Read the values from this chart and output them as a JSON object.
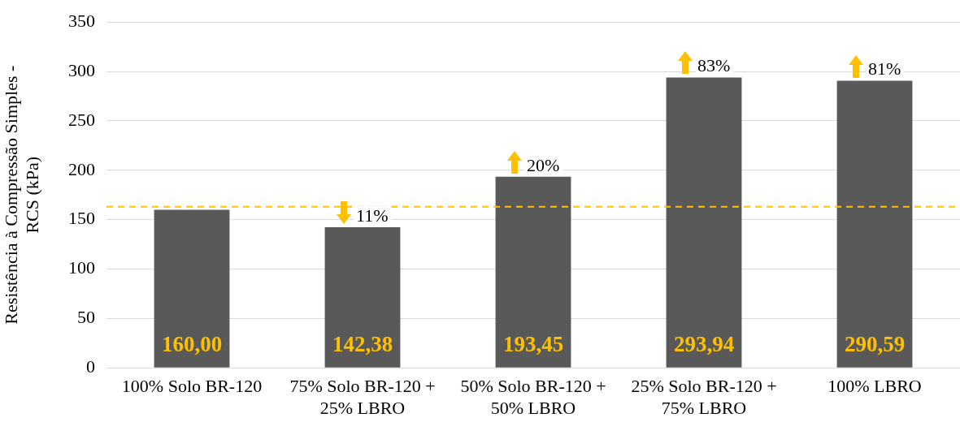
{
  "chart_data": {
    "type": "bar",
    "ylabel": "Resistência à Compressão Simples - RCS (kPa)",
    "categories": [
      "100% Solo BR-120",
      "75% Solo BR-120 + 25% LBRO",
      "50% Solo BR-120 + 50% LBRO",
      "25% Solo BR-120 + 75% LBRO",
      "100% LBRO"
    ],
    "series": [
      {
        "color": "#595959",
        "values": [
          160,
          142.38,
          193.45,
          293.94,
          290.59
        ],
        "value_labels": [
          "160,00",
          "142,38",
          "193,45",
          "293,94",
          "290,59"
        ]
      }
    ],
    "ylim": [
      0,
      350
    ],
    "yticks": [
      0,
      50,
      100,
      150,
      200,
      250,
      300,
      350
    ],
    "grid": "y",
    "legend": false,
    "ref_lines": [
      {
        "axis": "y",
        "value": 163,
        "color": "#ffc000",
        "line_style": "dashed"
      }
    ],
    "annotations": [
      {
        "text": "11%",
        "x": "75% Solo BR-120 + 25% LBRO",
        "y": 142.38
      },
      {
        "text": "20%",
        "x": "50% Solo BR-120 + 50% LBRO",
        "y": 193.45
      },
      {
        "text": "83%",
        "x": "25% Solo BR-120 + 75% LBRO",
        "y": 293.94
      },
      {
        "text": "81%",
        "x": "100% LBRO",
        "y": 290.59
      }
    ]
  }
}
